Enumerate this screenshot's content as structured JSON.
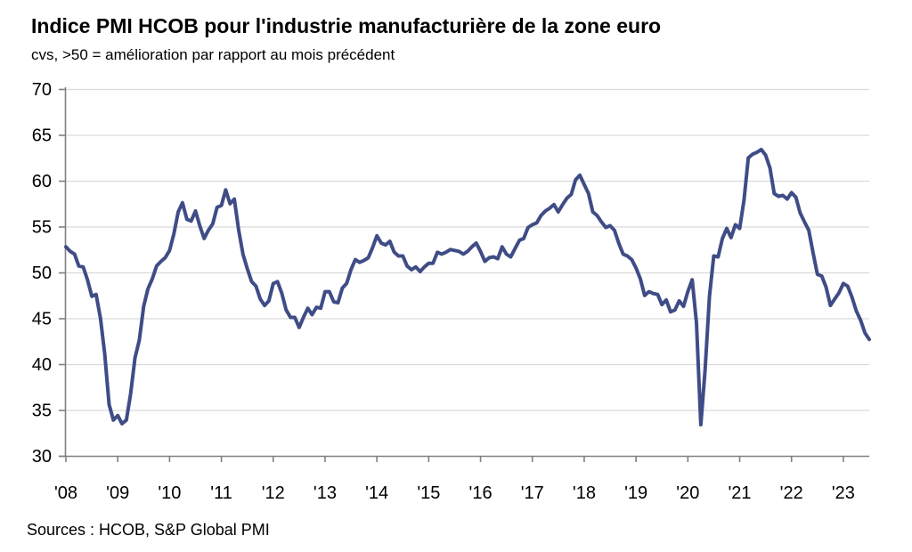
{
  "header": {
    "title": "Indice PMI HCOB pour l'industrie manufacturière de la zone euro",
    "subtitle": "cvs, >50 = amélioration par rapport au mois précédent"
  },
  "footer": {
    "source": "Sources : HCOB, S&P Global PMI"
  },
  "colors": {
    "line": "#3F4C86",
    "grid": "#D9D9D9",
    "axis": "#808080",
    "text": "#000000",
    "background": "#FFFFFF"
  },
  "chart_data": {
    "type": "line",
    "title": "Indice PMI HCOB pour l'industrie manufacturière de la zone euro",
    "subtitle": "cvs, >50 = amélioration par rapport au mois précédent",
    "source": "Sources : HCOB, S&P Global PMI",
    "x_start": "2008-01",
    "x_freq": "monthly",
    "x_end": "2023-07",
    "xlabel": "",
    "ylabel": "",
    "ylim": [
      30,
      70
    ],
    "y_ticks": [
      30,
      35,
      40,
      45,
      50,
      55,
      60,
      65,
      70
    ],
    "x_tick_labels": [
      "'08",
      "'09",
      "'10",
      "'11",
      "'12",
      "'13",
      "'14",
      "'15",
      "'16",
      "'17",
      "'18",
      "'19",
      "'20",
      "'21",
      "'22",
      "'23"
    ],
    "grid": "horizontal",
    "legend": "none",
    "series": [
      {
        "name": "PMI manufacturier zone euro",
        "color": "#3F4C86",
        "values": [
          52.8,
          52.3,
          52.0,
          50.7,
          50.6,
          49.2,
          47.4,
          47.6,
          45.0,
          41.1,
          35.6,
          33.9,
          34.4,
          33.5,
          33.9,
          36.8,
          40.7,
          42.6,
          46.3,
          48.2,
          49.3,
          50.7,
          51.2,
          51.6,
          52.4,
          54.2,
          56.6,
          57.6,
          55.8,
          55.6,
          56.7,
          55.1,
          53.7,
          54.6,
          55.3,
          57.1,
          57.3,
          59.0,
          57.5,
          58.0,
          54.6,
          52.0,
          50.4,
          49.0,
          48.5,
          47.1,
          46.4,
          46.9,
          48.8,
          49.0,
          47.7,
          45.9,
          45.1,
          45.1,
          44.0,
          45.1,
          46.1,
          45.4,
          46.2,
          46.1,
          47.9,
          47.9,
          46.8,
          46.7,
          48.3,
          48.8,
          50.3,
          51.4,
          51.1,
          51.3,
          51.6,
          52.7,
          54.0,
          53.2,
          53.0,
          53.4,
          52.2,
          51.8,
          51.8,
          50.7,
          50.3,
          50.6,
          50.1,
          50.6,
          51.0,
          51.0,
          52.2,
          52.0,
          52.2,
          52.5,
          52.4,
          52.3,
          52.0,
          52.3,
          52.8,
          53.2,
          52.3,
          51.2,
          51.6,
          51.7,
          51.5,
          52.8,
          52.0,
          51.7,
          52.6,
          53.5,
          53.7,
          54.9,
          55.2,
          55.4,
          56.2,
          56.7,
          57.0,
          57.4,
          56.6,
          57.4,
          58.1,
          58.5,
          60.1,
          60.6,
          59.6,
          58.6,
          56.6,
          56.2,
          55.5,
          54.9,
          55.1,
          54.6,
          53.2,
          52.0,
          51.8,
          51.4,
          50.5,
          49.3,
          47.5,
          47.9,
          47.7,
          47.6,
          46.5,
          47.0,
          45.7,
          45.9,
          46.9,
          46.3,
          47.9,
          49.2,
          44.5,
          33.4,
          39.4,
          47.4,
          51.8,
          51.7,
          53.7,
          54.8,
          53.8,
          55.2,
          54.8,
          57.9,
          62.5,
          62.9,
          63.1,
          63.4,
          62.8,
          61.4,
          58.6,
          58.3,
          58.4,
          58.0,
          58.7,
          58.2,
          56.5,
          55.5,
          54.6,
          52.1,
          49.8,
          49.6,
          48.4,
          46.4,
          47.1,
          47.8,
          48.8,
          48.5,
          47.3,
          45.8,
          44.8,
          43.4,
          42.7
        ]
      }
    ]
  }
}
